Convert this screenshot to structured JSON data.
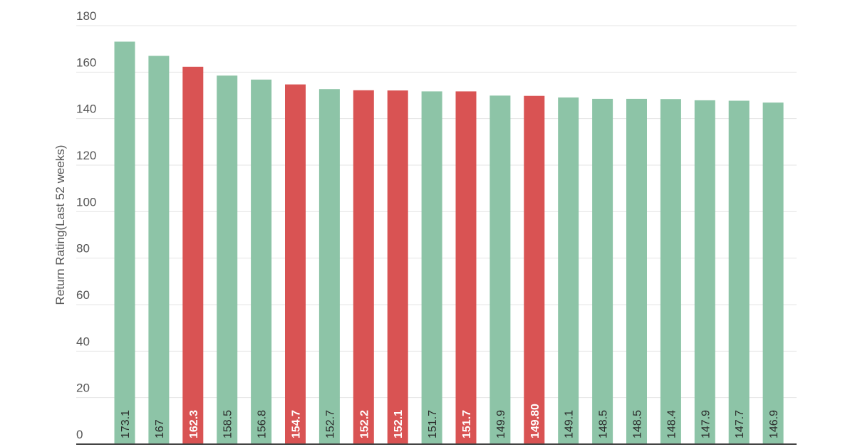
{
  "chart_data": {
    "type": "bar",
    "title": "",
    "xlabel": "",
    "ylabel": "Return Rating(Last 52 weeks)",
    "ylim": [
      0,
      180
    ],
    "yticks": [
      "0",
      "20",
      "40",
      "60",
      "80",
      "100",
      "120",
      "140",
      "160",
      "180"
    ],
    "grid": true,
    "legend": "none",
    "values": [
      173.1,
      167,
      162.3,
      158.5,
      156.8,
      154.7,
      152.7,
      152.2,
      152.1,
      151.7,
      151.7,
      149.9,
      149.8,
      149.1,
      148.5,
      148.5,
      148.4,
      147.9,
      147.7,
      146.9
    ],
    "value_labels": [
      "173.1",
      "167",
      "162.3",
      "158.5",
      "156.8",
      "154.7",
      "152.7",
      "152.2",
      "152.1",
      "151.7",
      "151.7",
      "149.9",
      "149.80",
      "149.1",
      "148.5",
      "148.5",
      "148.4",
      "147.9",
      "147.7",
      "146.9"
    ],
    "highlighted": [
      false,
      false,
      true,
      false,
      false,
      true,
      false,
      true,
      true,
      false,
      true,
      false,
      true,
      false,
      false,
      false,
      false,
      false,
      false,
      false
    ],
    "colors": {
      "default_bar": "#8dc4a7",
      "highlight_bar": "#d95353",
      "grid": "#e4e4e4",
      "axis": "#444444"
    }
  }
}
